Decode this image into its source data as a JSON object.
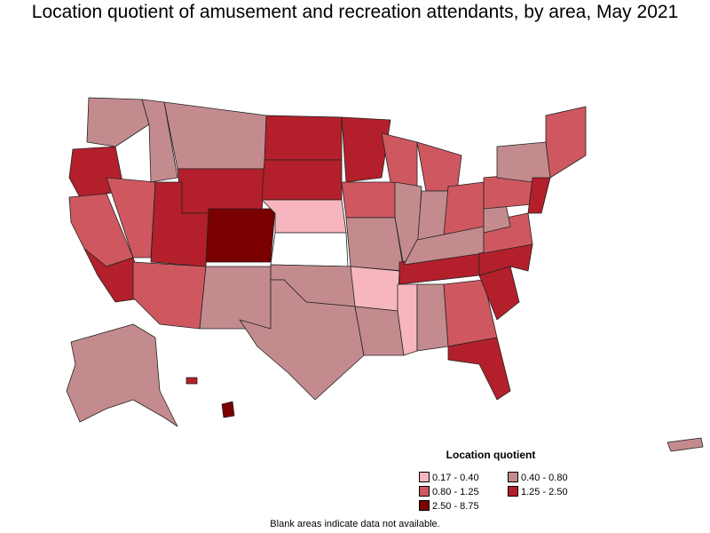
{
  "title": "Location quotient of amusement and recreation attendants, by area, May 2021",
  "legend": {
    "title": "Location quotient",
    "items": [
      {
        "label": "0.17 - 0.40",
        "color": "#f7b6bf"
      },
      {
        "label": "0.40 - 0.80",
        "color": "#c48b8f"
      },
      {
        "label": "0.80 - 1.25",
        "color": "#cf5860"
      },
      {
        "label": "1.25 - 2.50",
        "color": "#b3202b"
      },
      {
        "label": "2.50 - 8.75",
        "color": "#7a0000"
      }
    ],
    "no_data_color": "#ffffff"
  },
  "footnote": "Blank areas indicate data not available."
}
